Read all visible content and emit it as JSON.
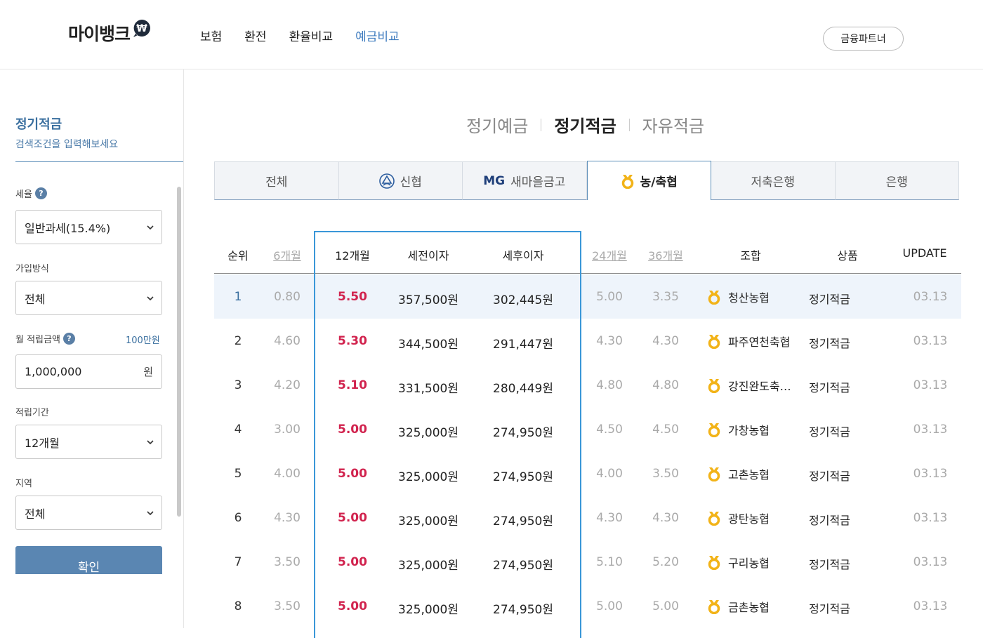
{
  "header": {
    "logo": "마이뱅크",
    "logo_symbol": "₩",
    "nav": [
      "보험",
      "환전",
      "환율비교",
      "예금비교"
    ],
    "nav_active": 3,
    "partner_button": "금융파트너"
  },
  "sidebar": {
    "title": "정기적금",
    "subtitle": "검색조건을 입력해보세요",
    "tax_label": "세율",
    "tax_value": "일반과세(15.4%)",
    "join_label": "가입방식",
    "join_value": "전체",
    "monthly_label": "월 적립금액",
    "monthly_hint": "100만원",
    "monthly_value": "1,000,000",
    "monthly_unit": "원",
    "period_label": "적립기간",
    "period_value": "12개월",
    "region_label": "지역",
    "region_value": "전체",
    "confirm_button": "확인",
    "help_glyph": "?"
  },
  "category_tabs": [
    "정기예금",
    "정기적금",
    "자유적금"
  ],
  "category_active": 1,
  "org_tabs": [
    {
      "label": "전체",
      "icon": ""
    },
    {
      "label": "신협",
      "icon": "cu-icon"
    },
    {
      "label": "새마을금고",
      "icon": "mg-icon",
      "prefix": "MG"
    },
    {
      "label": "농/축협",
      "icon": "nh-icon"
    },
    {
      "label": "저축은행",
      "icon": ""
    },
    {
      "label": "은행",
      "icon": ""
    }
  ],
  "org_active": 3,
  "table": {
    "headers": {
      "rank": "순위",
      "m6": "6개월",
      "m12": "12개월",
      "pre_tax": "세전이자",
      "post_tax": "세후이자",
      "m24": "24개월",
      "m36": "36개월",
      "coop": "조합",
      "product": "상품",
      "update": "UPDATE"
    },
    "rows": [
      {
        "rank": "1",
        "m6": "0.80",
        "m12": "5.50",
        "pre_tax": "357,500원",
        "post_tax": "302,445원",
        "m24": "5.00",
        "m36": "3.35",
        "coop": "청산농협",
        "product": "정기적금",
        "update": "03.13"
      },
      {
        "rank": "2",
        "m6": "4.60",
        "m12": "5.30",
        "pre_tax": "344,500원",
        "post_tax": "291,447원",
        "m24": "4.30",
        "m36": "4.30",
        "coop": "파주연천축협",
        "product": "정기적금",
        "update": "03.13"
      },
      {
        "rank": "3",
        "m6": "4.20",
        "m12": "5.10",
        "pre_tax": "331,500원",
        "post_tax": "280,449원",
        "m24": "4.80",
        "m36": "4.80",
        "coop": "강진완도축…",
        "product": "정기적금",
        "update": "03.13"
      },
      {
        "rank": "4",
        "m6": "3.00",
        "m12": "5.00",
        "pre_tax": "325,000원",
        "post_tax": "274,950원",
        "m24": "4.50",
        "m36": "4.50",
        "coop": "가창농협",
        "product": "정기적금",
        "update": "03.13"
      },
      {
        "rank": "5",
        "m6": "4.00",
        "m12": "5.00",
        "pre_tax": "325,000원",
        "post_tax": "274,950원",
        "m24": "4.00",
        "m36": "3.50",
        "coop": "고촌농협",
        "product": "정기적금",
        "update": "03.13"
      },
      {
        "rank": "6",
        "m6": "4.30",
        "m12": "5.00",
        "pre_tax": "325,000원",
        "post_tax": "274,950원",
        "m24": "4.30",
        "m36": "4.30",
        "coop": "광탄농협",
        "product": "정기적금",
        "update": "03.13"
      },
      {
        "rank": "7",
        "m6": "3.50",
        "m12": "5.00",
        "pre_tax": "325,000원",
        "post_tax": "274,950원",
        "m24": "5.10",
        "m36": "5.20",
        "coop": "구리농협",
        "product": "정기적금",
        "update": "03.13"
      },
      {
        "rank": "8",
        "m6": "3.50",
        "m12": "5.00",
        "pre_tax": "325,000원",
        "post_tax": "274,950원",
        "m24": "5.00",
        "m36": "5.00",
        "coop": "금촌농협",
        "product": "정기적금",
        "update": "03.13"
      }
    ]
  },
  "colors": {
    "accent": "#3f7cbf",
    "rate": "#d1234e",
    "highlight": "#3a97d8"
  }
}
